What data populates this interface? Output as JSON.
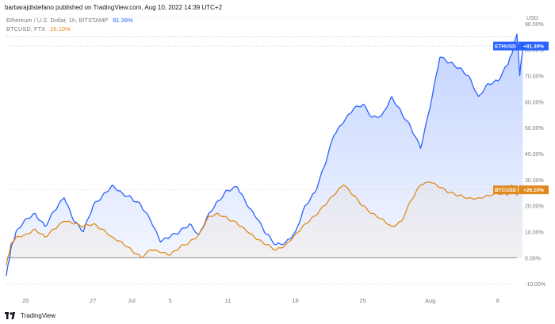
{
  "header": {
    "publisher": "barbarajdistefano published on TradingView.com, Aug 10, 2022 14:39 UTC+2"
  },
  "legend": [
    {
      "label": "Ethereum / U.S. Dollar, 1h, BITSTAMP",
      "value": "81.39%",
      "color": "#2962ff"
    },
    {
      "label": "BTCUSD, FTX",
      "value": "26.10%",
      "color": "#e08a1e"
    }
  ],
  "axis": {
    "unit": "USD"
  },
  "footer": {
    "brand": "TradingView"
  },
  "chart_data": {
    "type": "line",
    "yscale": "percent",
    "ylim": [
      -13,
      93
    ],
    "y_ticks": [
      {
        "value": 90,
        "label": "90.00%"
      },
      {
        "value": 80,
        "label": "80.00%"
      },
      {
        "value": 70,
        "label": "70.00%"
      },
      {
        "value": 60,
        "label": "60.00%"
      },
      {
        "value": 50,
        "label": "50.00%"
      },
      {
        "value": 40,
        "label": "40.00%"
      },
      {
        "value": 30,
        "label": "30.00%"
      },
      {
        "value": 20,
        "label": "20.00%"
      },
      {
        "value": 10,
        "label": "10.00%"
      },
      {
        "value": 0,
        "label": "0.00%"
      },
      {
        "value": -10,
        "label": "-10.00%"
      }
    ],
    "x_ticks": [
      {
        "date": "2022-06-20",
        "label": "20"
      },
      {
        "date": "2022-06-27",
        "label": "27"
      },
      {
        "date": "2022-07-01",
        "label": "Jul"
      },
      {
        "date": "2022-07-05",
        "label": "5"
      },
      {
        "date": "2022-07-11",
        "label": "11"
      },
      {
        "date": "2022-07-18",
        "label": "18"
      },
      {
        "date": "2022-07-25",
        "label": "25"
      },
      {
        "date": "2022-08-01",
        "label": "Aug"
      },
      {
        "date": "2022-08-08",
        "label": "8"
      }
    ],
    "xlim": [
      "2022-06-18",
      "2022-08-10"
    ],
    "reference_lines": [
      {
        "value": 0,
        "style": "solid"
      },
      {
        "value": 85,
        "style": "dashed"
      }
    ],
    "series": [
      {
        "name": "ETHUSD",
        "color": "#2962ff",
        "last_label": "ETHUSD",
        "last_value_label": "+81.39%",
        "last_value": 81.39,
        "points": [
          [
            "2022-06-18",
            -7
          ],
          [
            "2022-06-18",
            3
          ],
          [
            "2022-06-19",
            10
          ],
          [
            "2022-06-20",
            15
          ],
          [
            "2022-06-21",
            17
          ],
          [
            "2022-06-22",
            12
          ],
          [
            "2022-06-23",
            18
          ],
          [
            "2022-06-24",
            23
          ],
          [
            "2022-06-25",
            14
          ],
          [
            "2022-06-26",
            10
          ],
          [
            "2022-06-27",
            20
          ],
          [
            "2022-06-28",
            24
          ],
          [
            "2022-06-29",
            28
          ],
          [
            "2022-06-30",
            25
          ],
          [
            "2022-07-01",
            23
          ],
          [
            "2022-07-02",
            20
          ],
          [
            "2022-07-03",
            14
          ],
          [
            "2022-07-04",
            6
          ],
          [
            "2022-07-05",
            8
          ],
          [
            "2022-07-06",
            10
          ],
          [
            "2022-07-07",
            13
          ],
          [
            "2022-07-08",
            9
          ],
          [
            "2022-07-09",
            17
          ],
          [
            "2022-07-10",
            22
          ],
          [
            "2022-07-11",
            26
          ],
          [
            "2022-07-12",
            27
          ],
          [
            "2022-07-13",
            20
          ],
          [
            "2022-07-14",
            15
          ],
          [
            "2022-07-15",
            9
          ],
          [
            "2022-07-16",
            5
          ],
          [
            "2022-07-17",
            6
          ],
          [
            "2022-07-18",
            10
          ],
          [
            "2022-07-19",
            20
          ],
          [
            "2022-07-20",
            25
          ],
          [
            "2022-07-21",
            35
          ],
          [
            "2022-07-22",
            47
          ],
          [
            "2022-07-23",
            52
          ],
          [
            "2022-07-24",
            57
          ],
          [
            "2022-07-25",
            59
          ],
          [
            "2022-07-26",
            54
          ],
          [
            "2022-07-27",
            55
          ],
          [
            "2022-07-28",
            62
          ],
          [
            "2022-07-29",
            56
          ],
          [
            "2022-07-30",
            50
          ],
          [
            "2022-07-31",
            42
          ],
          [
            "2022-08-01",
            58
          ],
          [
            "2022-08-02",
            77
          ],
          [
            "2022-08-03",
            75
          ],
          [
            "2022-08-04",
            73
          ],
          [
            "2022-08-05",
            70
          ],
          [
            "2022-08-06",
            62
          ],
          [
            "2022-08-07",
            67
          ],
          [
            "2022-08-08",
            68
          ],
          [
            "2022-08-09",
            74
          ],
          [
            "2022-08-09",
            78
          ],
          [
            "2022-08-10",
            86
          ],
          [
            "2022-08-10",
            70
          ],
          [
            "2022-08-10",
            81.39
          ]
        ]
      },
      {
        "name": "BTCUSD",
        "color": "#e08a1e",
        "last_label": "BTCUSD",
        "last_value_label": "+26.10%",
        "last_value": 26.1,
        "points": [
          [
            "2022-06-18",
            -3
          ],
          [
            "2022-06-18",
            5
          ],
          [
            "2022-06-19",
            8
          ],
          [
            "2022-06-20",
            9
          ],
          [
            "2022-06-21",
            11
          ],
          [
            "2022-06-22",
            8
          ],
          [
            "2022-06-23",
            11
          ],
          [
            "2022-06-24",
            14
          ],
          [
            "2022-06-25",
            13
          ],
          [
            "2022-06-26",
            12
          ],
          [
            "2022-06-27",
            13
          ],
          [
            "2022-06-28",
            11
          ],
          [
            "2022-06-29",
            8
          ],
          [
            "2022-06-30",
            6
          ],
          [
            "2022-07-01",
            3
          ],
          [
            "2022-07-02",
            0
          ],
          [
            "2022-07-03",
            3
          ],
          [
            "2022-07-04",
            2
          ],
          [
            "2022-07-05",
            1
          ],
          [
            "2022-07-06",
            4
          ],
          [
            "2022-07-07",
            6
          ],
          [
            "2022-07-08",
            9
          ],
          [
            "2022-07-09",
            16
          ],
          [
            "2022-07-10",
            17
          ],
          [
            "2022-07-11",
            15
          ],
          [
            "2022-07-12",
            13
          ],
          [
            "2022-07-13",
            10
          ],
          [
            "2022-07-14",
            7
          ],
          [
            "2022-07-15",
            5
          ],
          [
            "2022-07-16",
            3
          ],
          [
            "2022-07-17",
            5
          ],
          [
            "2022-07-18",
            9
          ],
          [
            "2022-07-19",
            13
          ],
          [
            "2022-07-20",
            16
          ],
          [
            "2022-07-21",
            20
          ],
          [
            "2022-07-22",
            24
          ],
          [
            "2022-07-23",
            28
          ],
          [
            "2022-07-24",
            24
          ],
          [
            "2022-07-25",
            20
          ],
          [
            "2022-07-26",
            17
          ],
          [
            "2022-07-27",
            15
          ],
          [
            "2022-07-28",
            12
          ],
          [
            "2022-07-29",
            14
          ],
          [
            "2022-07-30",
            22
          ],
          [
            "2022-07-31",
            28
          ],
          [
            "2022-08-01",
            29
          ],
          [
            "2022-08-02",
            27
          ],
          [
            "2022-08-03",
            25
          ],
          [
            "2022-08-04",
            24
          ],
          [
            "2022-08-05",
            23
          ],
          [
            "2022-08-06",
            23
          ],
          [
            "2022-08-07",
            24
          ],
          [
            "2022-08-08",
            25
          ],
          [
            "2022-08-09",
            24
          ],
          [
            "2022-08-09",
            28
          ],
          [
            "2022-08-10",
            24
          ],
          [
            "2022-08-10",
            26.1
          ]
        ]
      }
    ]
  }
}
